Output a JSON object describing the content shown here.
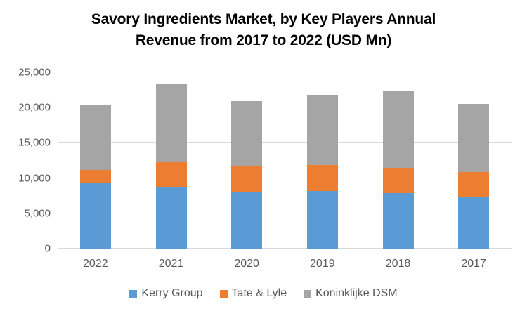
{
  "title_lines": [
    "Savory Ingredients Market, by Key Players Annual",
    "Revenue from 2017 to 2022 (USD Mn)"
  ],
  "chart_data": {
    "type": "bar",
    "stacked": true,
    "title": "Savory Ingredients Market, by Key Players Annual Revenue from 2017 to 2022 (USD Mn)",
    "xlabel": "",
    "ylabel": "",
    "categories": [
      "2022",
      "2021",
      "2020",
      "2019",
      "2018",
      "2017"
    ],
    "series": [
      {
        "name": "Kerry Group",
        "color": "#5B9BD5",
        "values": [
          9250,
          8650,
          7950,
          8200,
          7850,
          7300
        ]
      },
      {
        "name": "Tate & Lyle",
        "color": "#ED7D31",
        "values": [
          1950,
          3700,
          3700,
          3650,
          3650,
          3600
        ]
      },
      {
        "name": "Koninklijke DSM",
        "color": "#A5A5A5",
        "values": [
          9100,
          10950,
          9250,
          9950,
          10800,
          9650
        ]
      }
    ],
    "stack_totals": [
      20300,
      23300,
      20900,
      21800,
      22300,
      20550
    ],
    "ylim": [
      0,
      25000
    ],
    "yticks": [
      {
        "value": 0,
        "label": "0"
      },
      {
        "value": 5000,
        "label": "5,000"
      },
      {
        "value": 10000,
        "label": "10,000"
      },
      {
        "value": 15000,
        "label": "15,000"
      },
      {
        "value": 20000,
        "label": "20,000"
      },
      {
        "value": 25000,
        "label": "25,000"
      }
    ],
    "grid": true,
    "legend_position": "bottom",
    "styles": {
      "background": "#FFFFFF",
      "gridline_color": "#D9D9D9",
      "axis_text_color": "#595959",
      "title_color": "#000000"
    }
  }
}
